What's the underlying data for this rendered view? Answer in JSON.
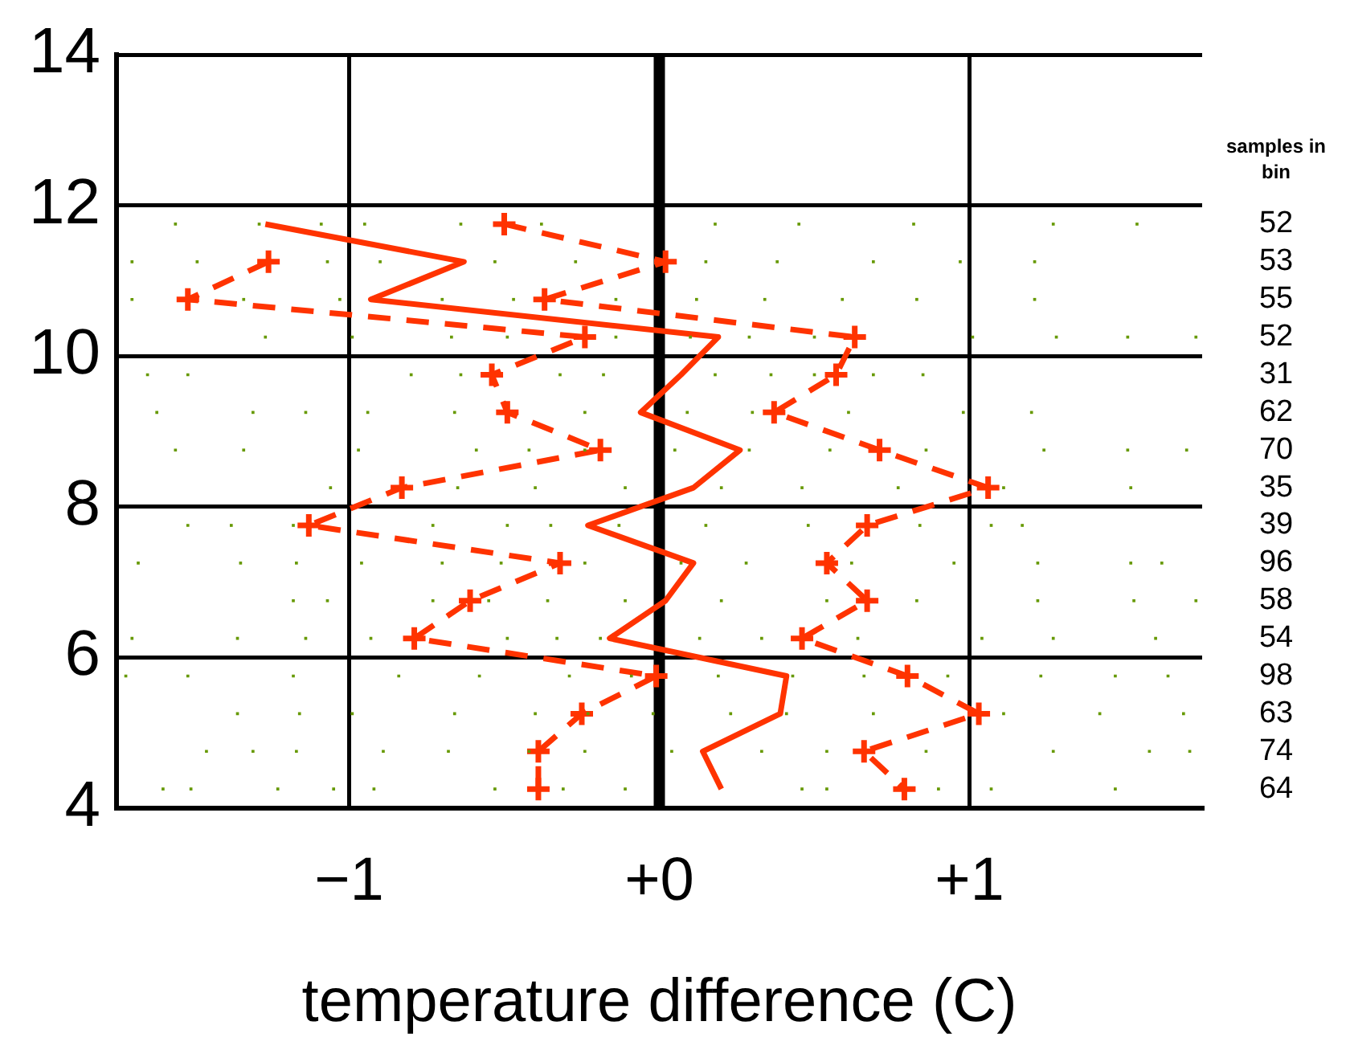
{
  "chart_data": {
    "type": "line",
    "xlabel": "temperature difference (C)",
    "xlim": [
      -1.75,
      1.75
    ],
    "ylim": [
      4,
      14
    ],
    "xticks": [
      {
        "value": -1,
        "label": "−1"
      },
      {
        "value": 0,
        "label": "+0"
      },
      {
        "value": 1,
        "label": "+1"
      }
    ],
    "yticks": [
      4,
      6,
      8,
      10,
      12,
      14
    ],
    "grid": true,
    "ref_lines": [
      {
        "axis": "x",
        "value": 0,
        "color": "#000000"
      }
    ],
    "annotations": [
      "samples in bin",
      "52",
      "53",
      "55",
      "52",
      "31",
      "62",
      "70",
      "35",
      "39",
      "96",
      "58",
      "54",
      "98",
      "63",
      "74",
      "64"
    ],
    "series": [
      {
        "type": "scatter",
        "color": "#669900",
        "marker": "square",
        "x": [
          -1.56,
          -1.29,
          -1.09,
          -0.95,
          -0.64,
          -0.38,
          0.18,
          0.45,
          0.82,
          1.27,
          1.54,
          -1.7,
          -1.49,
          -1.07,
          -0.9,
          -0.53,
          -0.27,
          0.15,
          0.38,
          0.69,
          0.97,
          1.21,
          -1.7,
          -1.34,
          -1.03,
          -0.7,
          -0.47,
          -0.14,
          0.12,
          0.34,
          0.59,
          0.83,
          1.21,
          -1.27,
          -0.99,
          -0.67,
          -0.49,
          -0.14,
          0.1,
          0.29,
          0.5,
          1.01,
          1.28,
          1.51,
          1.73,
          -1.65,
          -1.52,
          -0.8,
          -0.64,
          -0.32,
          -0.18,
          0.18,
          0.36,
          0.5,
          0.69,
          0.85,
          -1.62,
          -1.31,
          -1.14,
          -0.94,
          -0.66,
          -0.24,
          0.09,
          0.3,
          0.61,
          0.98,
          1.2,
          -1.56,
          -1.34,
          -0.97,
          -0.59,
          -0.42,
          -0.24,
          0.05,
          0.29,
          0.55,
          0.86,
          1.24,
          1.51,
          1.7,
          -1.06,
          -0.65,
          -0.4,
          -0.11,
          0.2,
          0.46,
          0.77,
          1.11,
          1.52,
          -1.52,
          -1.38,
          -1.18,
          -0.73,
          -0.49,
          -0.35,
          -0.13,
          0.15,
          0.48,
          0.84,
          1.07,
          1.17,
          -1.68,
          -1.35,
          -1.17,
          -0.96,
          -0.7,
          -0.51,
          -0.24,
          0.07,
          0.28,
          0.62,
          0.95,
          1.22,
          1.52,
          1.62,
          -1.18,
          -1.07,
          -0.73,
          -0.55,
          -0.36,
          -0.11,
          0.2,
          0.54,
          0.83,
          1.22,
          1.53,
          1.73,
          -1.7,
          -1.36,
          -1.14,
          -0.93,
          -0.49,
          -0.33,
          -0.19,
          0.13,
          0.33,
          0.64,
          1.04,
          1.27,
          1.6,
          -1.72,
          -1.52,
          -1.18,
          -0.84,
          -0.58,
          -0.29,
          -0.09,
          0.19,
          0.43,
          0.66,
          0.93,
          1.23,
          1.47,
          1.64,
          -1.36,
          -1.16,
          -0.99,
          -0.66,
          -0.4,
          -0.23,
          -0.02,
          0.23,
          0.41,
          0.69,
          1.11,
          1.42,
          1.69,
          -1.46,
          -1.31,
          -1.17,
          -0.89,
          -0.68,
          -0.42,
          -0.24,
          0.04,
          0.33,
          0.54,
          0.86,
          1.27,
          1.58,
          1.71,
          -1.6,
          -1.51,
          -1.23,
          -1.05,
          -0.92,
          -0.53,
          -0.31,
          -0.11,
          0.46,
          0.54,
          0.9,
          1.07,
          1.47
        ],
        "values": [
          11.75,
          11.75,
          11.75,
          11.75,
          11.75,
          11.75,
          11.75,
          11.75,
          11.75,
          11.75,
          11.75,
          11.25,
          11.25,
          11.25,
          11.25,
          11.25,
          11.25,
          11.25,
          11.25,
          11.25,
          11.25,
          11.25,
          10.75,
          10.75,
          10.75,
          10.75,
          10.75,
          10.75,
          10.75,
          10.75,
          10.75,
          10.75,
          10.75,
          10.25,
          10.25,
          10.25,
          10.25,
          10.25,
          10.25,
          10.25,
          10.25,
          10.25,
          10.25,
          10.25,
          10.25,
          9.75,
          9.75,
          9.75,
          9.75,
          9.75,
          9.75,
          9.75,
          9.75,
          9.75,
          9.75,
          9.75,
          9.25,
          9.25,
          9.25,
          9.25,
          9.25,
          9.25,
          9.25,
          9.25,
          9.25,
          9.25,
          9.25,
          8.75,
          8.75,
          8.75,
          8.75,
          8.75,
          8.75,
          8.75,
          8.75,
          8.75,
          8.75,
          8.75,
          8.75,
          8.75,
          8.25,
          8.25,
          8.25,
          8.25,
          8.25,
          8.25,
          8.25,
          8.25,
          8.25,
          7.75,
          7.75,
          7.75,
          7.75,
          7.75,
          7.75,
          7.75,
          7.75,
          7.75,
          7.75,
          7.75,
          7.75,
          7.25,
          7.25,
          7.25,
          7.25,
          7.25,
          7.25,
          7.25,
          7.25,
          7.25,
          7.25,
          7.25,
          7.25,
          7.25,
          7.25,
          6.75,
          6.75,
          6.75,
          6.75,
          6.75,
          6.75,
          6.75,
          6.75,
          6.75,
          6.75,
          6.75,
          6.75,
          6.25,
          6.25,
          6.25,
          6.25,
          6.25,
          6.25,
          6.25,
          6.25,
          6.25,
          6.25,
          6.25,
          6.25,
          6.25,
          5.75,
          5.75,
          5.75,
          5.75,
          5.75,
          5.75,
          5.75,
          5.75,
          5.75,
          5.75,
          5.75,
          5.75,
          5.75,
          5.75,
          5.25,
          5.25,
          5.25,
          5.25,
          5.25,
          5.25,
          5.25,
          5.25,
          5.25,
          5.25,
          5.25,
          5.25,
          5.25,
          4.75,
          4.75,
          4.75,
          4.75,
          4.75,
          4.75,
          4.75,
          4.75,
          4.75,
          4.75,
          4.75,
          4.75,
          4.75,
          4.75,
          4.25,
          4.25,
          4.25,
          4.25,
          4.25,
          4.25,
          4.25,
          4.25,
          4.25,
          4.25,
          4.25,
          4.25,
          4.25
        ]
      },
      {
        "type": "line",
        "color": "#ff3300",
        "marker": "none",
        "line_style": "solid",
        "x": [
          -1.27,
          -0.63,
          -0.93,
          0.19,
          0.07,
          -0.06,
          0.26,
          0.11,
          -0.23,
          0.11,
          0.02,
          -0.16,
          0.41,
          0.39,
          0.14,
          0.2
        ],
        "values": [
          11.75,
          11.25,
          10.75,
          10.25,
          9.75,
          9.25,
          8.75,
          8.25,
          7.75,
          7.25,
          6.75,
          6.25,
          5.75,
          5.25,
          4.75,
          4.25
        ]
      },
      {
        "type": "line",
        "color": "#ff3300",
        "marker": "cross",
        "line_style": "dashed",
        "x": [
          -0.5,
          0.02,
          -0.37,
          0.63,
          0.57,
          0.37,
          0.71,
          1.06,
          0.67,
          0.54,
          0.67,
          0.46,
          0.8,
          1.03,
          0.66,
          0.79
        ],
        "values": [
          11.75,
          11.25,
          10.75,
          10.25,
          9.75,
          9.25,
          8.75,
          8.25,
          7.75,
          7.25,
          6.75,
          6.25,
          5.75,
          5.25,
          4.75,
          4.25
        ]
      },
      {
        "type": "line",
        "color": "#ff3300",
        "marker": "cross",
        "line_style": "dashed",
        "x": [
          -1.26,
          -1.52,
          -0.24,
          -0.54,
          -0.49,
          -0.19,
          -0.83,
          -1.13,
          -0.32,
          -0.61,
          -0.79,
          -0.01,
          -0.25,
          -0.39,
          -0.39
        ],
        "values": [
          11.25,
          10.75,
          10.25,
          9.75,
          9.25,
          8.75,
          8.25,
          7.75,
          7.25,
          6.75,
          6.25,
          5.75,
          5.25,
          4.75,
          4.25
        ]
      }
    ]
  }
}
